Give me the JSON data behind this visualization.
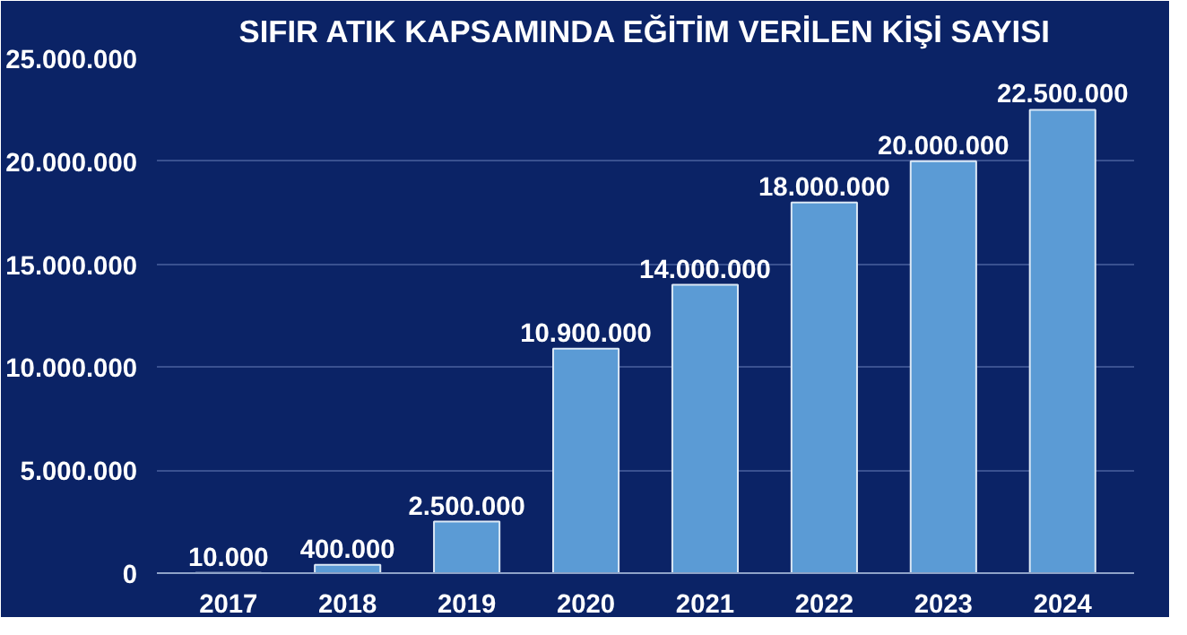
{
  "chart_data": {
    "type": "bar",
    "title": "SIFIR ATIK KAPSAMINDA EĞİTİM VERİLEN KİŞİ SAYISI",
    "categories": [
      "2017",
      "2018",
      "2019",
      "2020",
      "2021",
      "2022",
      "2023",
      "2024"
    ],
    "values": [
      10000,
      400000,
      2500000,
      10900000,
      14000000,
      18000000,
      20000000,
      22500000
    ],
    "value_labels": [
      "10.000",
      "400.000",
      "2.500.000",
      "10.900.000",
      "14.000.000",
      "18.000.000",
      "20.000.000",
      "22.500.000"
    ],
    "color": "#5b9bd5",
    "ylim": [
      0,
      25000000
    ],
    "yticks": [
      {
        "value": 0,
        "label": "0"
      },
      {
        "value": 5000000,
        "label": "5.000.000"
      },
      {
        "value": 10000000,
        "label": "10.000.000"
      },
      {
        "value": 15000000,
        "label": "15.000.000"
      },
      {
        "value": 20000000,
        "label": "20.000.000"
      },
      {
        "value": 25000000,
        "label": "25.000.000"
      }
    ],
    "grid": "y"
  }
}
